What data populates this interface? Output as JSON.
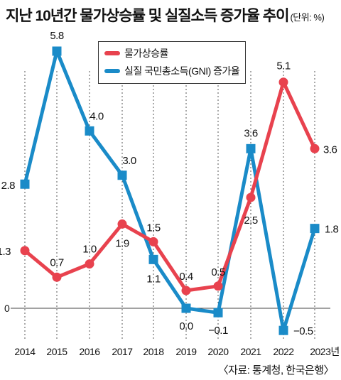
{
  "header": {
    "title": "지난 10년간 물가상승률 및 실질소득 증가율 추이",
    "unit": "(단위: %)"
  },
  "footer": {
    "source": "〈자료: 통계청, 한국은행〉"
  },
  "colors": {
    "inflation": "#e8424e",
    "gni": "#1a8bc8",
    "baseline": "#444444",
    "guide": "#555555"
  },
  "chart_data": {
    "type": "line",
    "title": "지난 10년간 물가상승률 및 실질소득 증가율 추이",
    "x": [
      "2014",
      "2015",
      "2016",
      "2017",
      "2018",
      "2019",
      "2020",
      "2021",
      "2022",
      "2023년"
    ],
    "ylim": [
      -0.5,
      5.8
    ],
    "zero_label": "0",
    "grid": false,
    "legend_position": "top-center",
    "series": [
      {
        "name": "물가상승률",
        "values": [
          1.3,
          0.7,
          1.0,
          1.9,
          1.5,
          0.4,
          0.5,
          2.5,
          5.1,
          3.6
        ],
        "labels": [
          "1.3",
          "0.7",
          "1.0",
          "1.9",
          "1.5",
          "0.4",
          "0.5",
          "2.5",
          "5.1",
          "3.6"
        ]
      },
      {
        "name": "실질 국민총소득(GNI) 증가율",
        "values": [
          2.8,
          5.8,
          4.0,
          3.0,
          1.1,
          0.0,
          -0.1,
          3.6,
          -0.5,
          1.8
        ],
        "labels": [
          "2.8",
          "5.8",
          "4.0",
          "3.0",
          "1.1",
          "0.0",
          "−0.1",
          "3.6",
          "−0.5",
          "1.8"
        ]
      }
    ]
  }
}
